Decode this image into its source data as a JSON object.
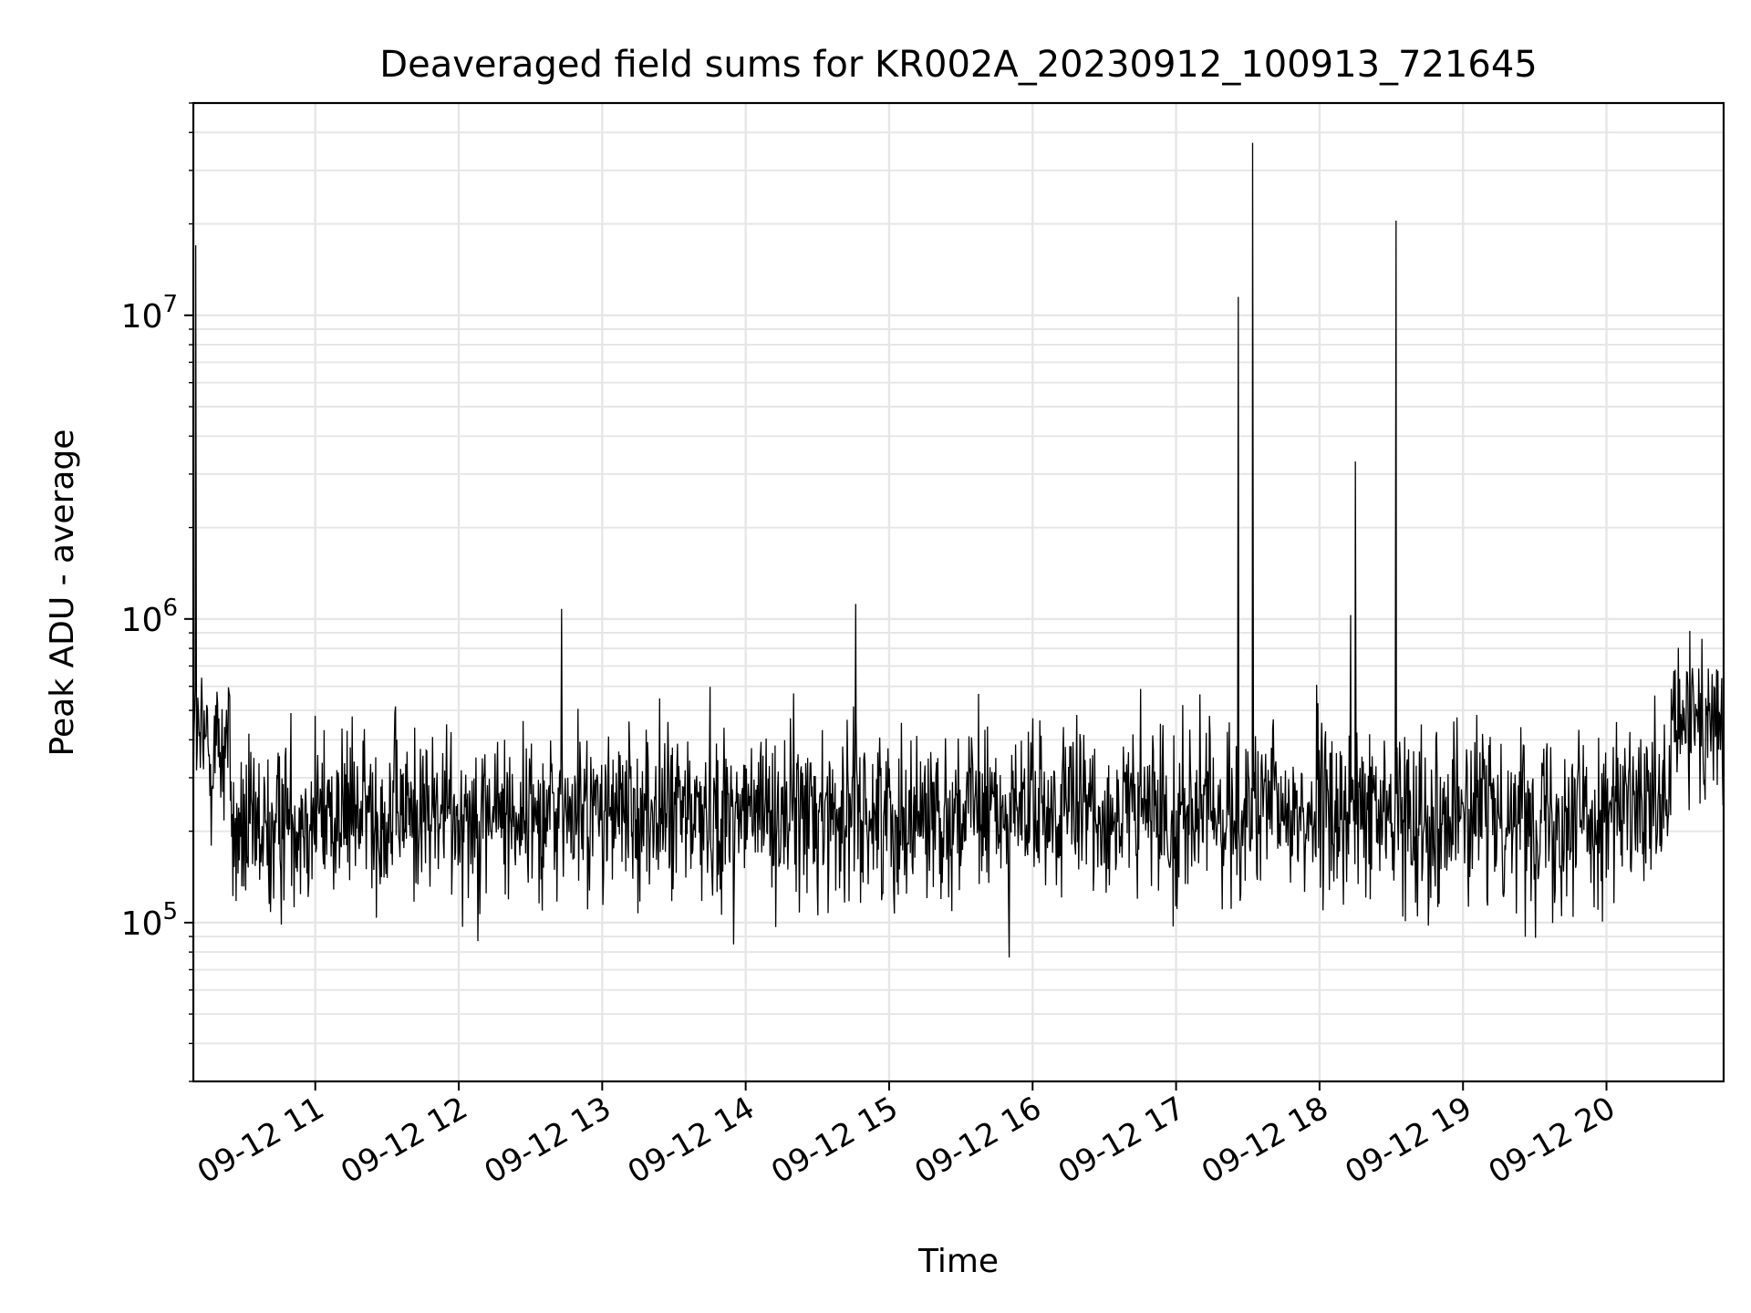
{
  "chart_data": {
    "type": "line",
    "title": "Deaveraged field sums for KR002A_20230912_100913_721645",
    "xlabel": "Time",
    "ylabel": "Peak ADU - average",
    "yscale": "log",
    "ylim": [
      30000,
      50000000
    ],
    "xlim": [
      "2023-09-12 10:09",
      "2023-09-12 20:49"
    ],
    "grid": true,
    "line_color": "#000000",
    "grid_color": "#e6e6e6",
    "x_ticks": [
      "09-12 11",
      "09-12 12",
      "09-12 13",
      "09-12 14",
      "09-12 15",
      "09-12 16",
      "09-12 17",
      "09-12 18",
      "09-12 19",
      "09-12 20"
    ],
    "y_ticks": [
      {
        "base": "10",
        "exp": "5",
        "value": 100000
      },
      {
        "base": "10",
        "exp": "6",
        "value": 1000000
      },
      {
        "base": "10",
        "exp": "7",
        "value": 10000000
      }
    ],
    "series": [
      {
        "style": "noise band",
        "typical": 230000,
        "approx_range": [
          40000,
          1000000
        ],
        "late_segment": {
          "from": "2023-09-12 20:27",
          "typical": 450000
        }
      },
      {
        "style": "spikes",
        "x": [
          "2023-09-12 10:10",
          "2023-09-12 12:43",
          "2023-09-12 14:46",
          "2023-09-12 17:26",
          "2023-09-12 17:32",
          "2023-09-12 18:13",
          "2023-09-12 18:15",
          "2023-09-12 18:32"
        ],
        "y": [
          17000000,
          1080000,
          1120000,
          11500000,
          37000000,
          1030000,
          3300000,
          20500000
        ]
      }
    ]
  }
}
